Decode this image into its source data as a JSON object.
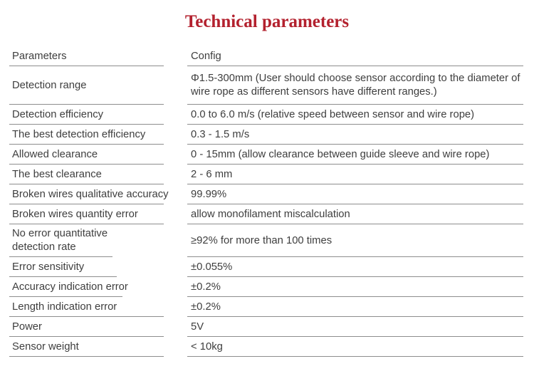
{
  "title": "Technical parameters",
  "colors": {
    "title_red": "#b3212e",
    "body_text": "#3e3e3e",
    "rule_gray": "#8d8d8d"
  },
  "table": {
    "header": {
      "param": "Parameters",
      "config": "Config"
    },
    "rows": [
      {
        "param": "Detection range",
        "config": "Φ1.5-300mm (User should choose sensor according to the diameter of wire rope as different sensors have different ranges.)"
      },
      {
        "param": "Detection efficiency",
        "config": "0.0 to 6.0 m/s (relative speed between sensor and wire rope)"
      },
      {
        "param": "The best detection efficiency",
        "config": "0.3 - 1.5 m/s"
      },
      {
        "param": "Allowed clearance",
        "config": "0 - 15mm (allow clearance between guide sleeve and wire rope)"
      },
      {
        "param": "The best clearance",
        "config": "2 - 6 mm"
      },
      {
        "param": "Broken wires qualitative accuracy",
        "config": "99.99%"
      },
      {
        "param": "Broken wires quantity error",
        "config": "allow monofilament miscalculation"
      },
      {
        "param": "No error quantitative detection rate",
        "config": "≥92% for more than 100 times"
      },
      {
        "param": "Error sensitivity",
        "config": "±0.055%"
      },
      {
        "param": "Accuracy indication error",
        "config": "±0.2%"
      },
      {
        "param": "Length indication error",
        "config": "±0.2%"
      },
      {
        "param": "Power",
        "config": "5V"
      },
      {
        "param": "Sensor weight",
        "config": "< 10kg"
      }
    ]
  }
}
